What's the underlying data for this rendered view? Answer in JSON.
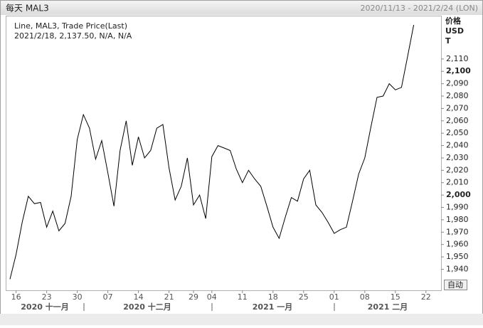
{
  "header": {
    "title": "每天 MAL3",
    "range": "2020/11/13 - 2021/2/24 (LON)"
  },
  "button": "自动",
  "chart_data": {
    "type": "line",
    "legend_detail": "2021/2/18, 2,137.50, N/A, N/A",
    "y_axis_label": [
      "价格",
      "USD",
      "T"
    ],
    "months": [
      "2020 十一月",
      "2020 十二月",
      "2021 一月",
      "2021 二月"
    ],
    "categories": [
      null,
      "16",
      null,
      null,
      null,
      null,
      "23",
      null,
      null,
      null,
      null,
      "30",
      null,
      null,
      null,
      null,
      "07",
      null,
      null,
      null,
      null,
      "14",
      null,
      null,
      null,
      null,
      "21",
      null,
      null,
      null,
      "29",
      null,
      null,
      "04",
      null,
      null,
      null,
      null,
      "11",
      null,
      null,
      null,
      null,
      "18",
      null,
      null,
      null,
      null,
      "25",
      null,
      null,
      null,
      null,
      "01",
      null,
      null,
      null,
      null,
      "08",
      null,
      null,
      null,
      null,
      "15",
      null,
      null,
      null,
      null,
      "22",
      null,
      null
    ],
    "series": [
      {
        "name": "Line, MAL3, Trade Price(Last)",
        "color": "#000000",
        "values": [
          1932,
          1952,
          1978,
          1999,
          1993,
          1994,
          1974,
          1987,
          1971,
          1977,
          1999,
          2045,
          2065,
          2054,
          2029,
          2044,
          2018,
          1991,
          2036,
          2060,
          2024,
          2047,
          2030,
          2036,
          2054,
          2057,
          2022,
          1996,
          2007,
          2030,
          1992,
          2000,
          1981,
          2031,
          2040,
          2038,
          2036,
          2021,
          2010,
          2020,
          2013,
          2007,
          1991,
          1974,
          1965,
          1982,
          1998,
          1995,
          2013,
          2020,
          1992,
          1986,
          1978,
          1969,
          1972,
          1974,
          1995,
          2017,
          2030,
          2055,
          2079,
          2080,
          2090,
          2085,
          2087,
          2112,
          2137.5,
          null,
          null,
          null,
          null
        ]
      }
    ],
    "ylim": [
      1923,
      2145
    ],
    "yticks": [
      {
        "value": 1940,
        "label": "1,940"
      },
      {
        "value": 1950,
        "label": "1,950"
      },
      {
        "value": 1960,
        "label": "1,960"
      },
      {
        "value": 1970,
        "label": "1,970"
      },
      {
        "value": 1980,
        "label": "1,980"
      },
      {
        "value": 1990,
        "label": "1,990"
      },
      {
        "value": 2000,
        "label": "2,000"
      },
      {
        "value": 2010,
        "label": "2,010"
      },
      {
        "value": 2020,
        "label": "2,020"
      },
      {
        "value": 2030,
        "label": "2,030"
      },
      {
        "value": 2040,
        "label": "2,040"
      },
      {
        "value": 2050,
        "label": "2,050"
      },
      {
        "value": 2060,
        "label": "2,060"
      },
      {
        "value": 2070,
        "label": "2,070"
      },
      {
        "value": 2080,
        "label": "2,080"
      },
      {
        "value": 2090,
        "label": "2,090"
      },
      {
        "value": 2100,
        "label": "2,100"
      },
      {
        "value": 2110,
        "label": "2,110"
      }
    ]
  }
}
